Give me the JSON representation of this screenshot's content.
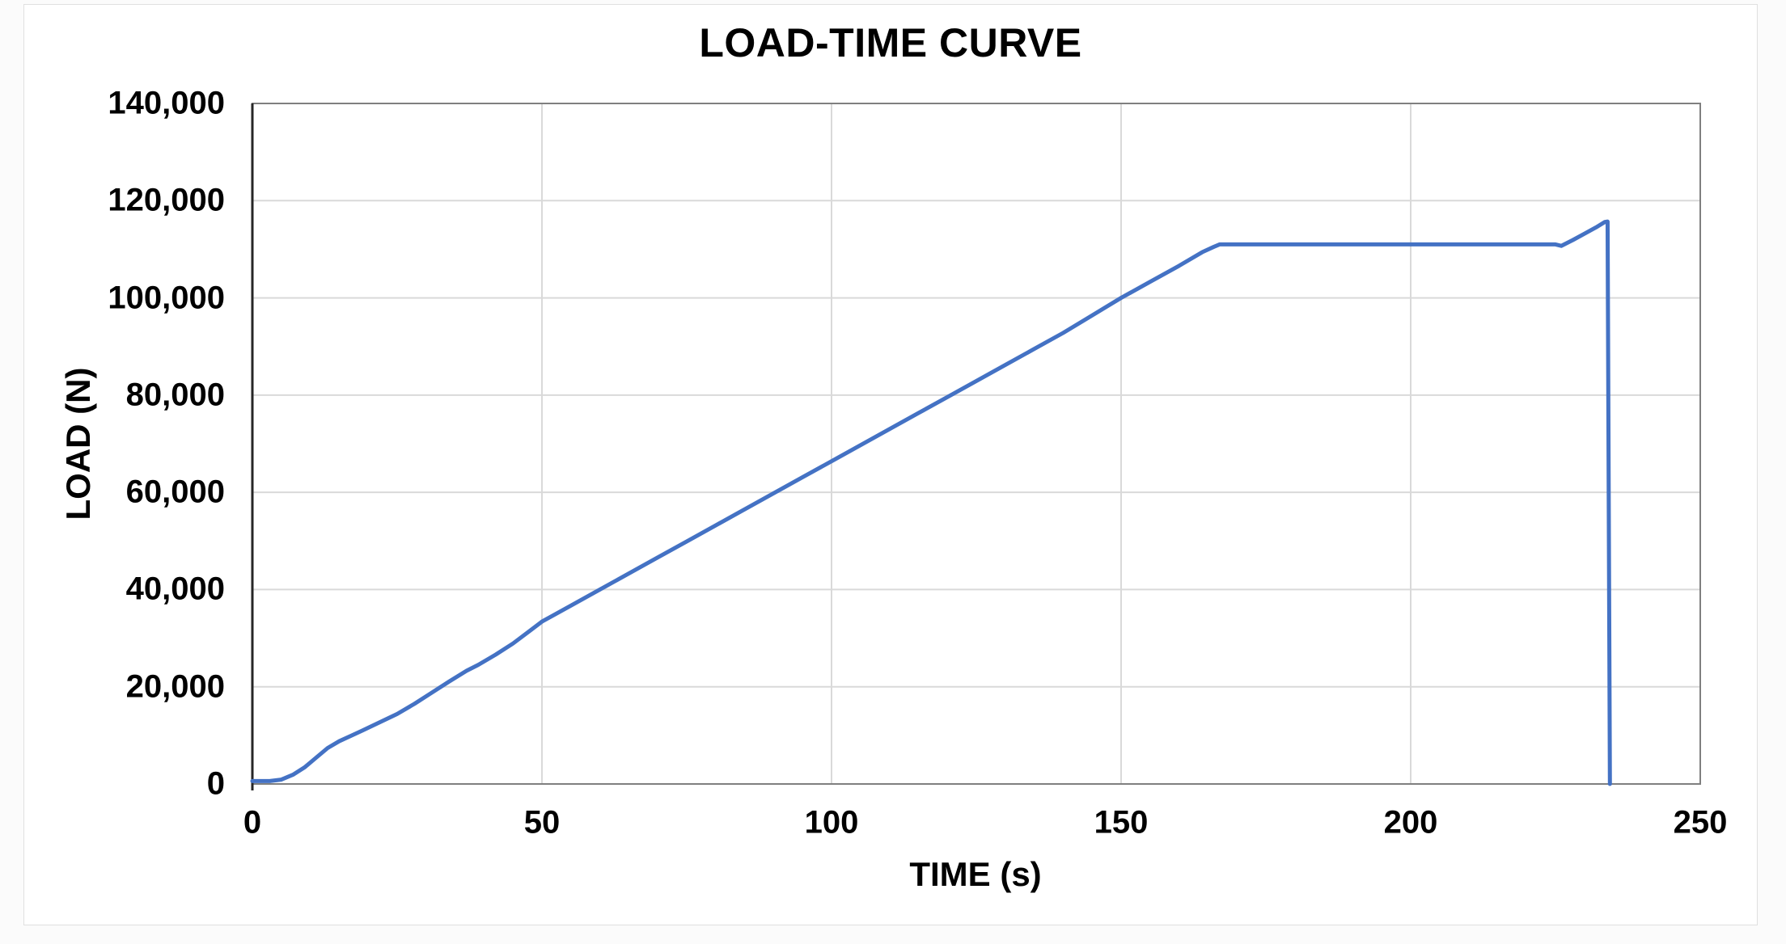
{
  "chart_data": {
    "type": "line",
    "title": "LOAD-TIME CURVE",
    "xlabel": "TIME (s)",
    "ylabel": "LOAD (N)",
    "xlim": [
      0,
      250
    ],
    "ylim": [
      0,
      140000
    ],
    "xticks": [
      0,
      50,
      100,
      150,
      200,
      250
    ],
    "yticks": [
      0,
      20000,
      40000,
      60000,
      80000,
      100000,
      120000,
      140000
    ],
    "grid": true,
    "legend": "none",
    "line_color": "#4472C4",
    "series": [
      {
        "name": "Load",
        "points": [
          [
            0,
            600
          ],
          [
            3,
            600
          ],
          [
            5,
            900
          ],
          [
            7,
            1900
          ],
          [
            9,
            3400
          ],
          [
            11,
            5400
          ],
          [
            13,
            7400
          ],
          [
            15,
            8800
          ],
          [
            17,
            9900
          ],
          [
            19,
            11000
          ],
          [
            22,
            12700
          ],
          [
            25,
            14400
          ],
          [
            28,
            16500
          ],
          [
            31,
            18800
          ],
          [
            34,
            21100
          ],
          [
            37,
            23300
          ],
          [
            39,
            24500
          ],
          [
            42,
            26600
          ],
          [
            45,
            28900
          ],
          [
            48,
            31600
          ],
          [
            50,
            33400
          ],
          [
            55,
            36700
          ],
          [
            60,
            40000
          ],
          [
            65,
            43300
          ],
          [
            70,
            46600
          ],
          [
            75,
            49900
          ],
          [
            80,
            53200
          ],
          [
            85,
            56500
          ],
          [
            90,
            59800
          ],
          [
            95,
            63100
          ],
          [
            100,
            66400
          ],
          [
            105,
            69700
          ],
          [
            110,
            73000
          ],
          [
            115,
            76300
          ],
          [
            120,
            79600
          ],
          [
            125,
            82900
          ],
          [
            130,
            86200
          ],
          [
            135,
            89500
          ],
          [
            140,
            92800
          ],
          [
            145,
            96400
          ],
          [
            150,
            100000
          ],
          [
            155,
            103300
          ],
          [
            160,
            106600
          ],
          [
            164,
            109400
          ],
          [
            166,
            110500
          ],
          [
            167,
            111000
          ],
          [
            180,
            111000
          ],
          [
            200,
            111000
          ],
          [
            215,
            111000
          ],
          [
            225,
            111000
          ],
          [
            226,
            110700
          ],
          [
            228,
            111900
          ],
          [
            230,
            113200
          ],
          [
            232,
            114500
          ],
          [
            233.5,
            115600
          ],
          [
            234,
            115700
          ],
          [
            234.4,
            0
          ]
        ]
      }
    ]
  }
}
